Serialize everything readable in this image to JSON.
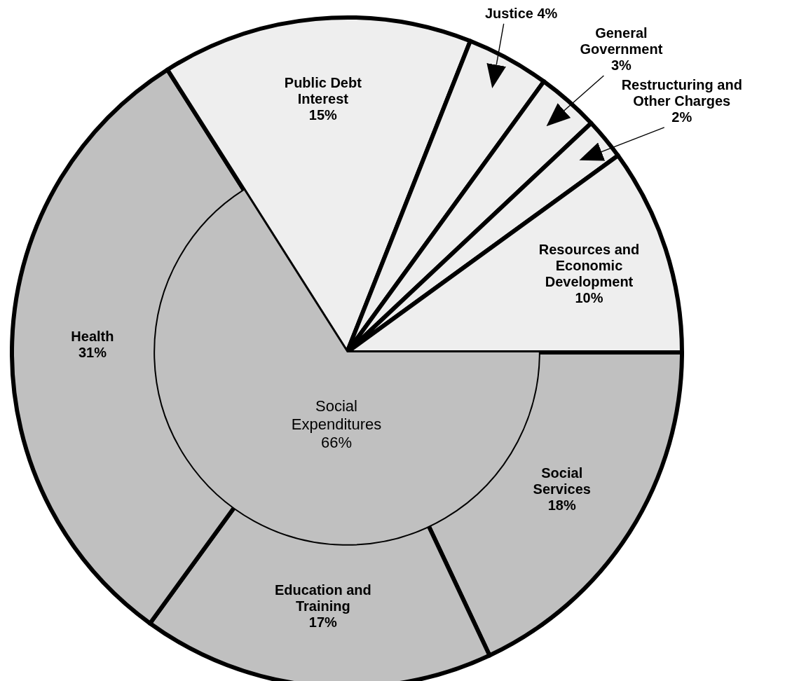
{
  "chart_data": {
    "type": "pie",
    "categories": [
      "Social Services",
      "Education and Training",
      "Health",
      "Public Debt Interest",
      "Justice",
      "General Government",
      "Restructuring and Other Charges",
      "Resources and Economic Development"
    ],
    "values": [
      18,
      17,
      31,
      15,
      4,
      3,
      2,
      10
    ],
    "value_labels": [
      "18%",
      "17%",
      "31%",
      "15%",
      "4%",
      "3%",
      "2%",
      "10%"
    ],
    "colors": [
      "#c0c0c0",
      "#c0c0c0",
      "#c0c0c0",
      "#eeeeee",
      "#eeeeee",
      "#eeeeee",
      "#eeeeee",
      "#eeeeee"
    ],
    "annotations": [
      "Social Expenditures 66%"
    ]
  }
}
